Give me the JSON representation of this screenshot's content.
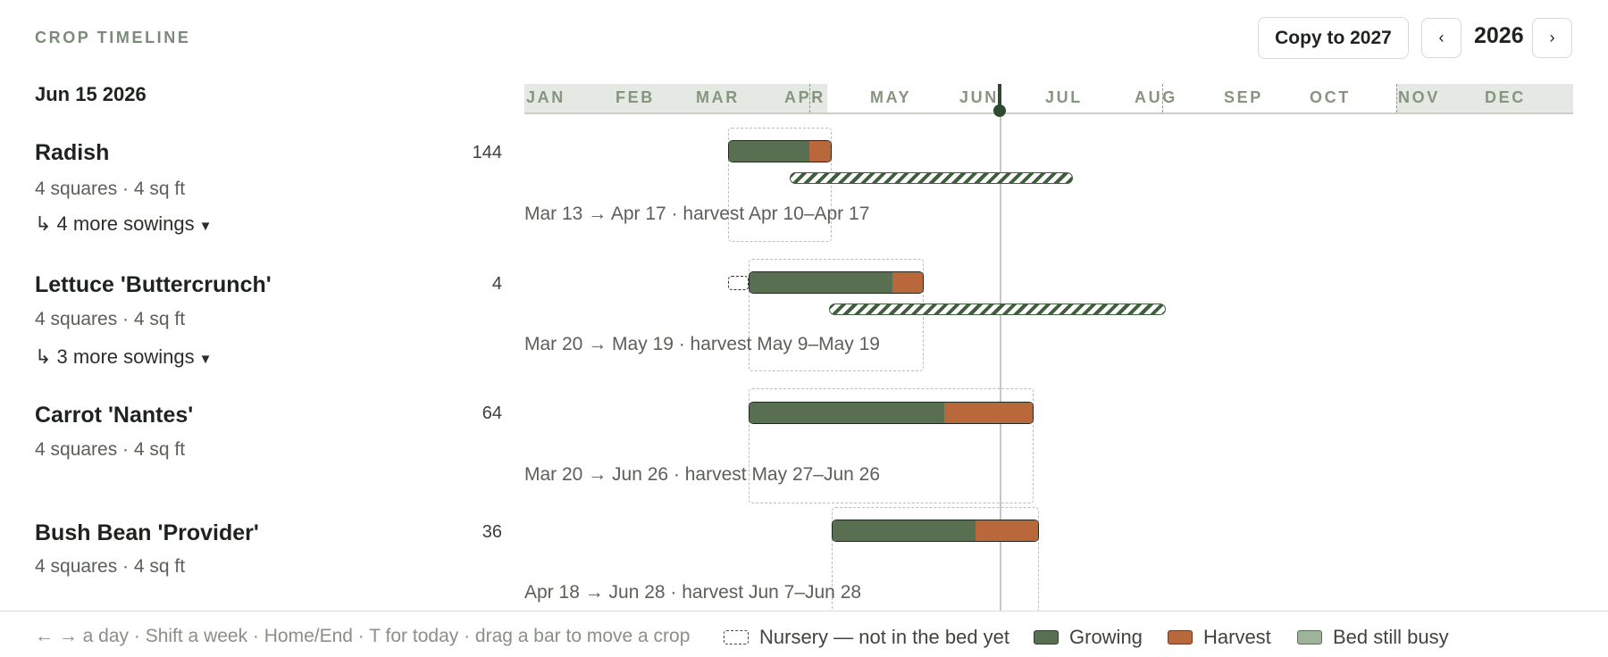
{
  "header": {
    "title": "CROP TIMELINE",
    "date_label": "Jun 15 2026",
    "copy_button": "Copy to 2027",
    "prev_label": "‹",
    "next_label": "›",
    "year": "2026"
  },
  "timeline": {
    "months": [
      "JAN",
      "FEB",
      "MAR",
      "APR",
      "MAY",
      "JUN",
      "JUL",
      "AUG",
      "SEP",
      "OCT",
      "NOV",
      "DEC"
    ],
    "today": "Jun 15"
  },
  "crops": [
    {
      "name": "Radish",
      "meta": "4 squares · 4 sq ft",
      "count": "144",
      "sowings": "↳ 4 more sowings",
      "range": "Mar 13 → Apr 17 · harvest Apr 10–Apr 17"
    },
    {
      "name": "Lettuce 'Buttercrunch'",
      "meta": "4 squares · 4 sq ft",
      "count": "4",
      "sowings": "↳ 3 more sowings",
      "range": "Mar 20 → May 19 · harvest May 9–May 19"
    },
    {
      "name": "Carrot 'Nantes'",
      "meta": "4 squares · 4 sq ft",
      "count": "64",
      "range": "Mar 20 → Jun 26 · harvest May 27–Jun 26"
    },
    {
      "name": "Bush Bean 'Provider'",
      "meta": "4 squares · 4 sq ft",
      "count": "36",
      "range": "Apr 18 → Jun 28 · harvest Jun 7–Jun 28"
    }
  ],
  "footer": {
    "hint": "← → a day · Shift a week · Home/End · T for today · drag a bar to move a crop",
    "legend": {
      "nursery": "Nursery — not in the bed yet",
      "growing": "Growing",
      "harvest": "Harvest",
      "busy": "Bed still busy"
    }
  },
  "colors": {
    "growing": "#586f51",
    "harvest": "#b8683a",
    "busy": "#9fb29a",
    "accent": "#2e4a2f"
  }
}
